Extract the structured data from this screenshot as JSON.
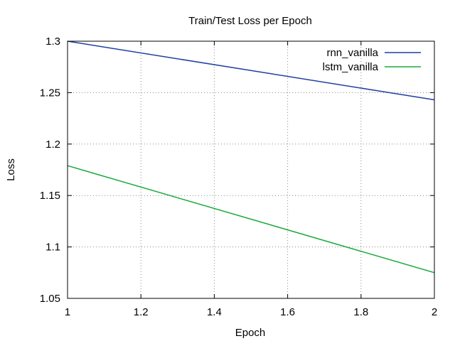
{
  "chart_data": {
    "type": "line",
    "title": "Train/Test Loss per Epoch",
    "xlabel": "Epoch",
    "ylabel": "Loss",
    "xlim": [
      1,
      2
    ],
    "ylim": [
      1.05,
      1.3
    ],
    "x_ticks": [
      1,
      1.2,
      1.4,
      1.6,
      1.8,
      2
    ],
    "y_ticks": [
      1.05,
      1.1,
      1.15,
      1.2,
      1.25,
      1.3
    ],
    "x_tick_labels": [
      "1",
      "1.2",
      "1.4",
      "1.6",
      "1.8",
      "2"
    ],
    "y_tick_labels": [
      "1.05",
      "1.1",
      "1.15",
      "1.2",
      "1.25",
      "1.3"
    ],
    "grid": true,
    "legend_position": "top-right",
    "series": [
      {
        "name": "rnn_vanilla",
        "color": "#1f3f9f",
        "x": [
          1,
          2
        ],
        "values": [
          1.3,
          1.243
        ]
      },
      {
        "name": "lstm_vanilla",
        "color": "#1aaa3a",
        "x": [
          1,
          2
        ],
        "values": [
          1.179,
          1.075
        ]
      }
    ]
  }
}
